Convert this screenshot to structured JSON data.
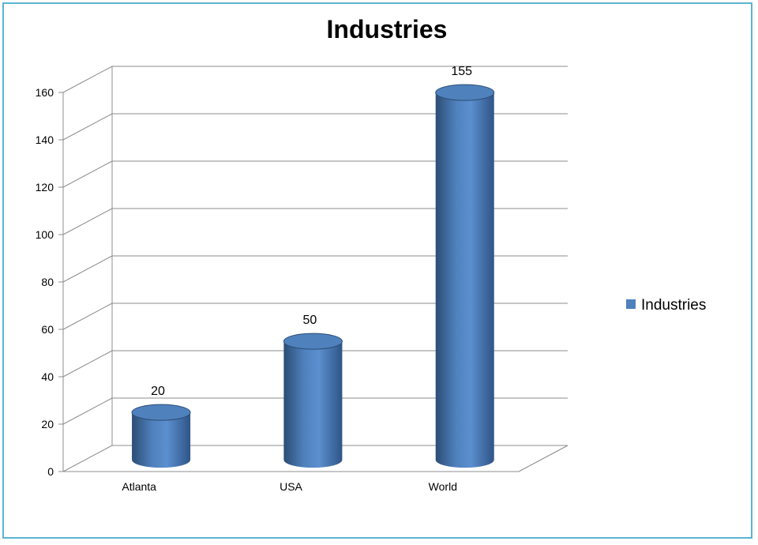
{
  "chart_data": {
    "type": "bar",
    "title": "Industries",
    "categories": [
      "Atlanta",
      "USA",
      "World"
    ],
    "series": [
      {
        "name": "Industries",
        "values": [
          20,
          50,
          155
        ]
      }
    ],
    "data_labels": [
      "20",
      "50",
      "155"
    ],
    "ylim": [
      0,
      160
    ],
    "yticks": [
      "0",
      "20",
      "40",
      "60",
      "80",
      "100",
      "120",
      "140",
      "160"
    ],
    "grid": true,
    "legend_position": "right",
    "style": "3d-cylinder"
  },
  "colors": {
    "bar": "#4f81bd",
    "bar_dark": "#2c4d75",
    "bar_light": "#7aa2d6",
    "grid": "#8c8c8c",
    "border": "#5bb4d2"
  }
}
